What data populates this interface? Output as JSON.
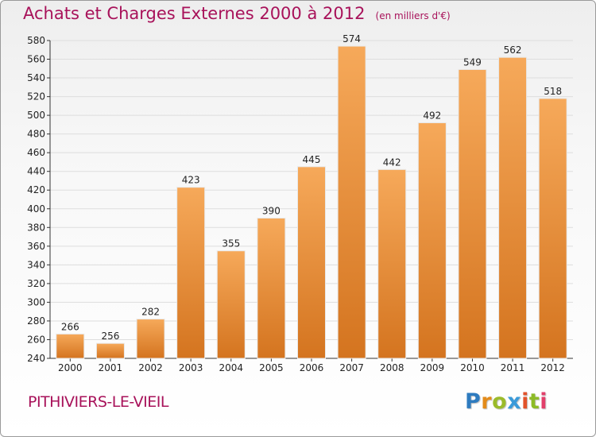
{
  "header": {
    "title": "Achats et Charges Externes 2000 à 2012",
    "unit": "(en milliers d'€)"
  },
  "footer": {
    "city": "PITHIVIERS-LE-VIEIL",
    "logo": "Proxiti",
    "logo_colors": [
      "#2e7bbf",
      "#e38b1a",
      "#9bbb2a",
      "#3a9ad9",
      "#e2522a",
      "#8dbb27",
      "#e23f6a"
    ]
  },
  "colors": {
    "title": "#a8125a",
    "bar_light": "#f6a95a",
    "bar_dark": "#d4741f",
    "grid": "#dddddd"
  },
  "chart_data": {
    "type": "bar",
    "title": "Achats et Charges Externes 2000 à 2012",
    "xlabel": "",
    "ylabel": "",
    "categories": [
      "2000",
      "2001",
      "2002",
      "2003",
      "2004",
      "2005",
      "2006",
      "2007",
      "2008",
      "2009",
      "2010",
      "2011",
      "2012"
    ],
    "values": [
      266,
      256,
      282,
      423,
      355,
      390,
      445,
      574,
      442,
      492,
      549,
      562,
      518
    ],
    "ylim": [
      240,
      580
    ],
    "ytick_step": 20,
    "grid": true,
    "data_labels": true
  }
}
